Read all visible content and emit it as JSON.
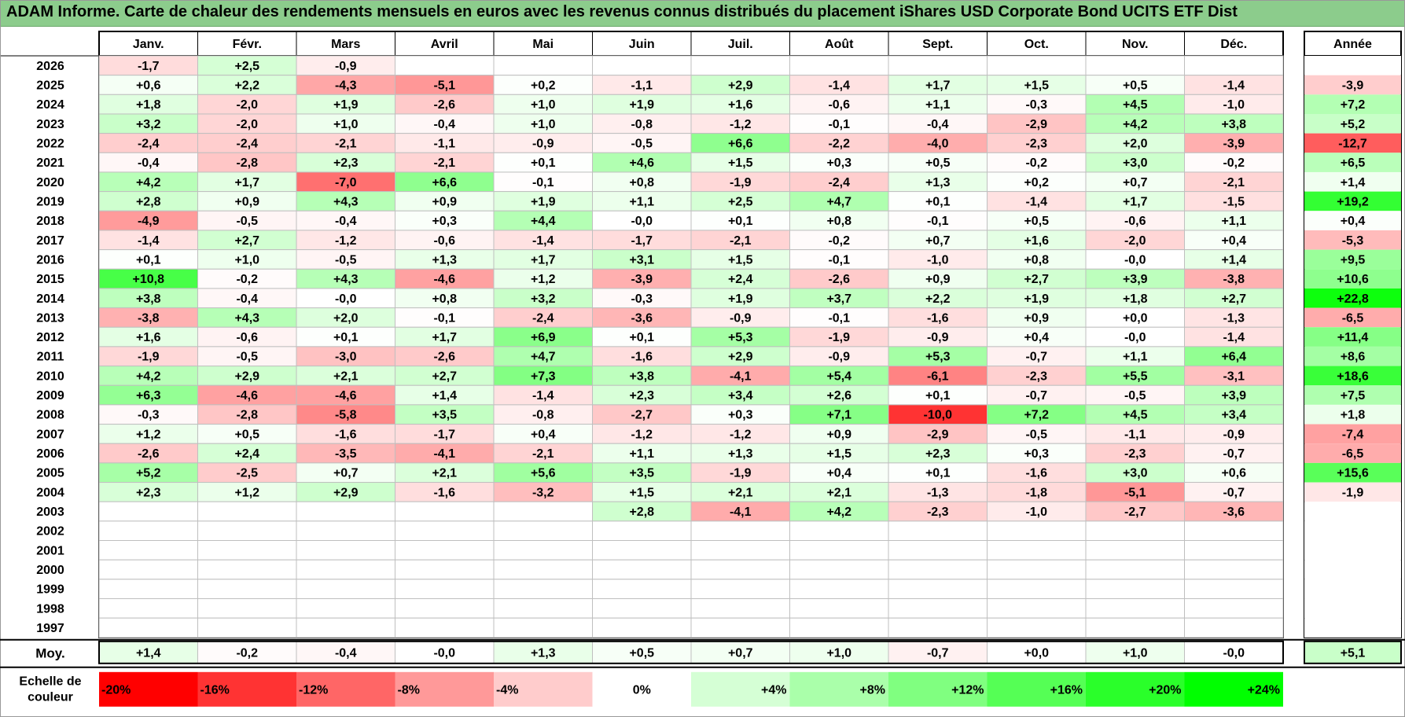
{
  "title": "ADAM Informe. Carte de chaleur des rendements mensuels en euros avec les revenus connus distribués du placement iShares USD Corporate Bond UCITS ETF Dist",
  "chart_data": {
    "type": "heatmap",
    "months": [
      "Janv.",
      "Févr.",
      "Mars",
      "Avril",
      "Mai",
      "Juin",
      "Juil.",
      "Août",
      "Sept.",
      "Oct.",
      "Nov.",
      "Déc."
    ],
    "year_column_label": "Année",
    "rows": [
      {
        "year": "2026",
        "months": [
          "-1,7",
          "+2,5",
          "-0,9",
          "",
          "",
          "",
          "",
          "",
          "",
          "",
          "",
          ""
        ],
        "annual": ""
      },
      {
        "year": "2025",
        "months": [
          "+0,6",
          "+2,2",
          "-4,3",
          "-5,1",
          "+0,2",
          "-1,1",
          "+2,9",
          "-1,4",
          "+1,7",
          "+1,5",
          "+0,5",
          "-1,4"
        ],
        "annual": "-3,9"
      },
      {
        "year": "2024",
        "months": [
          "+1,8",
          "-2,0",
          "+1,9",
          "-2,6",
          "+1,0",
          "+1,9",
          "+1,6",
          "-0,6",
          "+1,1",
          "-0,3",
          "+4,5",
          "-1,0"
        ],
        "annual": "+7,2"
      },
      {
        "year": "2023",
        "months": [
          "+3,2",
          "-2,0",
          "+1,0",
          "-0,4",
          "+1,0",
          "-0,8",
          "-1,2",
          "-0,1",
          "-0,4",
          "-2,9",
          "+4,2",
          "+3,8"
        ],
        "annual": "+5,2"
      },
      {
        "year": "2022",
        "months": [
          "-2,4",
          "-2,4",
          "-2,1",
          "-1,1",
          "-0,9",
          "-0,5",
          "+6,6",
          "-2,2",
          "-4,0",
          "-2,3",
          "+2,0",
          "-3,9"
        ],
        "annual": "-12,7"
      },
      {
        "year": "2021",
        "months": [
          "-0,4",
          "-2,8",
          "+2,3",
          "-2,1",
          "+0,1",
          "+4,6",
          "+1,5",
          "+0,3",
          "+0,5",
          "-0,2",
          "+3,0",
          "-0,2"
        ],
        "annual": "+6,5"
      },
      {
        "year": "2020",
        "months": [
          "+4,2",
          "+1,7",
          "-7,0",
          "+6,6",
          "-0,1",
          "+0,8",
          "-1,9",
          "-2,4",
          "+1,3",
          "+0,2",
          "+0,7",
          "-2,1"
        ],
        "annual": "+1,4"
      },
      {
        "year": "2019",
        "months": [
          "+2,8",
          "+0,9",
          "+4,3",
          "+0,9",
          "+1,9",
          "+1,1",
          "+2,5",
          "+4,7",
          "+0,1",
          "-1,4",
          "+1,7",
          "-1,5"
        ],
        "annual": "+19,2"
      },
      {
        "year": "2018",
        "months": [
          "-4,9",
          "-0,5",
          "-0,4",
          "+0,3",
          "+4,4",
          "-0,0",
          "+0,1",
          "+0,8",
          "-0,1",
          "+0,5",
          "-0,6",
          "+1,1"
        ],
        "annual": "+0,4"
      },
      {
        "year": "2017",
        "months": [
          "-1,4",
          "+2,7",
          "-1,2",
          "-0,6",
          "-1,4",
          "-1,7",
          "-2,1",
          "-0,2",
          "+0,7",
          "+1,6",
          "-2,0",
          "+0,4"
        ],
        "annual": "-5,3"
      },
      {
        "year": "2016",
        "months": [
          "+0,1",
          "+1,0",
          "-0,5",
          "+1,3",
          "+1,7",
          "+3,1",
          "+1,5",
          "-0,1",
          "-1,0",
          "+0,8",
          "-0,0",
          "+1,4"
        ],
        "annual": "+9,5"
      },
      {
        "year": "2015",
        "months": [
          "+10,8",
          "-0,2",
          "+4,3",
          "-4,6",
          "+1,2",
          "-3,9",
          "+2,4",
          "-2,6",
          "+0,9",
          "+2,7",
          "+3,9",
          "-3,8"
        ],
        "annual": "+10,6"
      },
      {
        "year": "2014",
        "months": [
          "+3,8",
          "-0,4",
          "-0,0",
          "+0,8",
          "+3,2",
          "-0,3",
          "+1,9",
          "+3,7",
          "+2,2",
          "+1,9",
          "+1,8",
          "+2,7"
        ],
        "annual": "+22,8"
      },
      {
        "year": "2013",
        "months": [
          "-3,8",
          "+4,3",
          "+2,0",
          "-0,1",
          "-2,4",
          "-3,6",
          "-0,9",
          "-0,1",
          "-1,6",
          "+0,9",
          "+0,0",
          "-1,3"
        ],
        "annual": "-6,5"
      },
      {
        "year": "2012",
        "months": [
          "+1,6",
          "-0,6",
          "+0,1",
          "+1,7",
          "+6,9",
          "+0,1",
          "+5,3",
          "-1,9",
          "-0,9",
          "+0,4",
          "-0,0",
          "-1,4"
        ],
        "annual": "+11,4"
      },
      {
        "year": "2011",
        "months": [
          "-1,9",
          "-0,5",
          "-3,0",
          "-2,6",
          "+4,7",
          "-1,6",
          "+2,9",
          "-0,9",
          "+5,3",
          "-0,7",
          "+1,1",
          "+6,4"
        ],
        "annual": "+8,6"
      },
      {
        "year": "2010",
        "months": [
          "+4,2",
          "+2,9",
          "+2,1",
          "+2,7",
          "+7,3",
          "+3,8",
          "-4,1",
          "+5,4",
          "-6,1",
          "-2,3",
          "+5,5",
          "-3,1"
        ],
        "annual": "+18,6"
      },
      {
        "year": "2009",
        "months": [
          "+6,3",
          "-4,6",
          "-4,6",
          "+1,4",
          "-1,4",
          "+2,3",
          "+3,4",
          "+2,6",
          "+0,1",
          "-0,7",
          "-0,5",
          "+3,9"
        ],
        "annual": "+7,5"
      },
      {
        "year": "2008",
        "months": [
          "-0,3",
          "-2,8",
          "-5,8",
          "+3,5",
          "-0,8",
          "-2,7",
          "+0,3",
          "+7,1",
          "-10,0",
          "+7,2",
          "+4,5",
          "+3,4"
        ],
        "annual": "+1,8"
      },
      {
        "year": "2007",
        "months": [
          "+1,2",
          "+0,5",
          "-1,6",
          "-1,7",
          "+0,4",
          "-1,2",
          "-1,2",
          "+0,9",
          "-2,9",
          "-0,5",
          "-1,1",
          "-0,9"
        ],
        "annual": "-7,4"
      },
      {
        "year": "2006",
        "months": [
          "-2,6",
          "+2,4",
          "-3,5",
          "-4,1",
          "-2,1",
          "+1,1",
          "+1,3",
          "+1,5",
          "+2,3",
          "+0,3",
          "-2,3",
          "-0,7"
        ],
        "annual": "-6,5"
      },
      {
        "year": "2005",
        "months": [
          "+5,2",
          "-2,5",
          "+0,7",
          "+2,1",
          "+5,6",
          "+3,5",
          "-1,9",
          "+0,4",
          "+0,1",
          "-1,6",
          "+3,0",
          "+0,6"
        ],
        "annual": "+15,6"
      },
      {
        "year": "2004",
        "months": [
          "+2,3",
          "+1,2",
          "+2,9",
          "-1,6",
          "-3,2",
          "+1,5",
          "+2,1",
          "+2,1",
          "-1,3",
          "-1,8",
          "-5,1",
          "-0,7"
        ],
        "annual": "-1,9"
      },
      {
        "year": "2003",
        "months": [
          "",
          "",
          "",
          "",
          "",
          "+2,8",
          "-4,1",
          "+4,2",
          "-2,3",
          "-1,0",
          "-2,7",
          "-3,6"
        ],
        "annual": ""
      },
      {
        "year": "2002",
        "months": [
          "",
          "",
          "",
          "",
          "",
          "",
          "",
          "",
          "",
          "",
          "",
          ""
        ],
        "annual": ""
      },
      {
        "year": "2001",
        "months": [
          "",
          "",
          "",
          "",
          "",
          "",
          "",
          "",
          "",
          "",
          "",
          ""
        ],
        "annual": ""
      },
      {
        "year": "2000",
        "months": [
          "",
          "",
          "",
          "",
          "",
          "",
          "",
          "",
          "",
          "",
          "",
          ""
        ],
        "annual": ""
      },
      {
        "year": "1999",
        "months": [
          "",
          "",
          "",
          "",
          "",
          "",
          "",
          "",
          "",
          "",
          "",
          ""
        ],
        "annual": ""
      },
      {
        "year": "1998",
        "months": [
          "",
          "",
          "",
          "",
          "",
          "",
          "",
          "",
          "",
          "",
          "",
          ""
        ],
        "annual": ""
      },
      {
        "year": "1997",
        "months": [
          "",
          "",
          "",
          "",
          "",
          "",
          "",
          "",
          "",
          "",
          "",
          ""
        ],
        "annual": ""
      }
    ],
    "average": {
      "label": "Moy.",
      "months": [
        "+1,4",
        "-0,2",
        "-0,4",
        "-0,0",
        "+1,3",
        "+0,5",
        "+0,7",
        "+1,0",
        "-0,7",
        "+0,0",
        "+1,0",
        "-0,0"
      ],
      "annual": "+5,1"
    },
    "color_scale": {
      "label_lines": [
        "Echelle de",
        "couleur"
      ],
      "stops": [
        {
          "label": "-20%",
          "value": -20
        },
        {
          "label": "-16%",
          "value": -16
        },
        {
          "label": "-12%",
          "value": -12
        },
        {
          "label": "-8%",
          "value": -8
        },
        {
          "label": "-4%",
          "value": -4
        },
        {
          "label": "0%",
          "value": 0
        },
        {
          "label": "+4%",
          "value": 4
        },
        {
          "label": "+8%",
          "value": 8
        },
        {
          "label": "+12%",
          "value": 12
        },
        {
          "label": "+16%",
          "value": 16
        },
        {
          "label": "+20%",
          "value": 20
        },
        {
          "label": "+24%",
          "value": 24
        }
      ]
    }
  }
}
